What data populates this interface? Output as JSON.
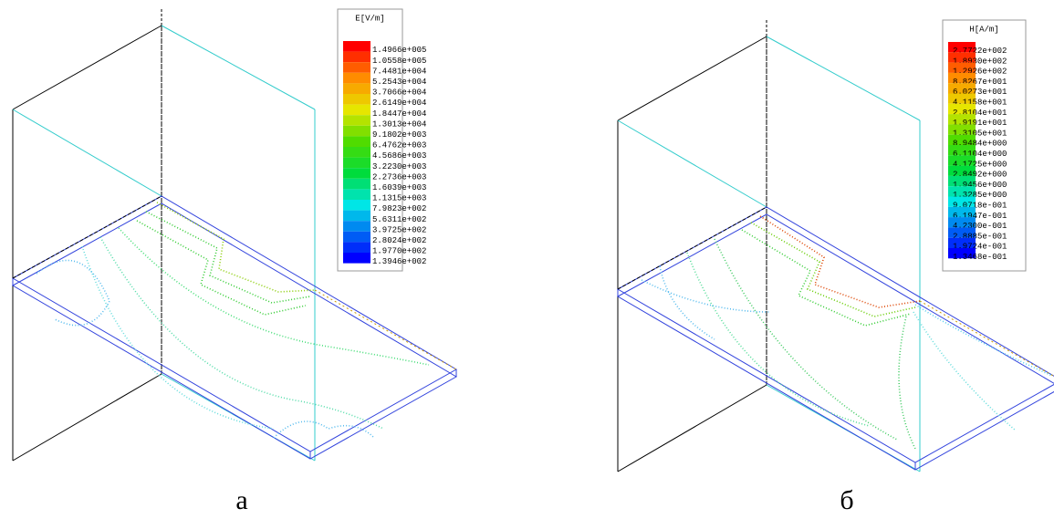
{
  "panels": [
    {
      "legend": {
        "title": "E[V/m]",
        "labels": [
          "1.4966e+005",
          "1.0558e+005",
          "7.4481e+004",
          "5.2543e+004",
          "3.7066e+004",
          "2.6149e+004",
          "1.8447e+004",
          "1.3013e+004",
          "9.1802e+003",
          "6.4762e+003",
          "4.5686e+003",
          "3.2230e+003",
          "2.2736e+003",
          "1.6039e+003",
          "1.1315e+003",
          "7.9823e+002",
          "5.6311e+002",
          "3.9725e+002",
          "2.8024e+002",
          "1.9770e+002",
          "1.3946e+002"
        ]
      },
      "caption": "а"
    },
    {
      "legend": {
        "title": "H[A/m]",
        "labels": [
          "2.7722e+002",
          "1.8930e+002",
          "1.2926e+002",
          "8.8267e+001",
          "6.0273e+001",
          "4.1158e+001",
          "2.8104e+001",
          "1.9191e+001",
          "1.3105e+001",
          "8.9484e+000",
          "6.1104e+000",
          "4.1725e+000",
          "2.8492e+000",
          "1.9456e+000",
          "1.3285e+000",
          "9.0718e-001",
          "6.1947e-001",
          "4.2300e-001",
          "2.8885e-001",
          "1.9724e-001",
          "1.3468e-001"
        ]
      },
      "caption": "б"
    }
  ]
}
